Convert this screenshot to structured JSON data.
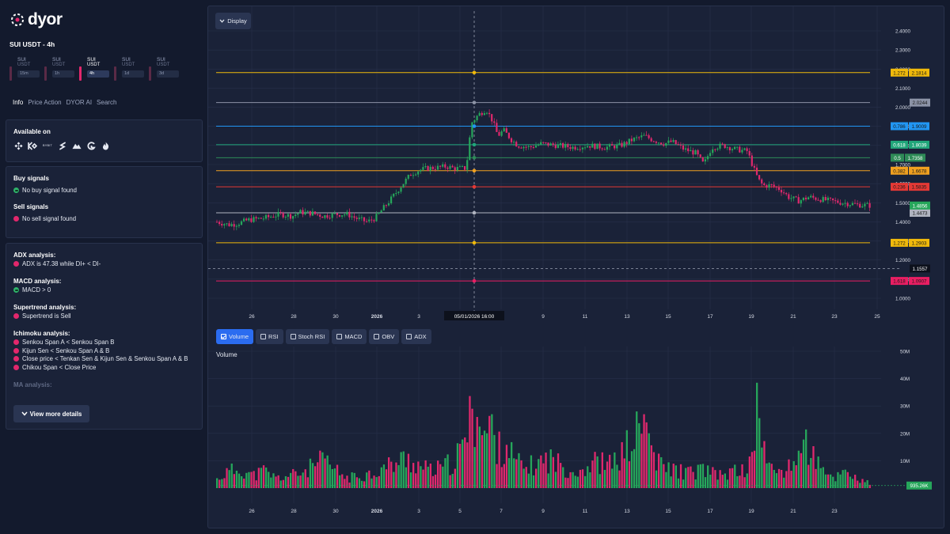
{
  "brand": {
    "name": "dyor"
  },
  "pair_title": "SUI USDT - 4h",
  "timeframes": [
    {
      "symbol": "SUI",
      "quote": "USDT",
      "label": "15m",
      "active": false
    },
    {
      "symbol": "SUI",
      "quote": "USDT",
      "label": "1h",
      "active": false
    },
    {
      "symbol": "SUI",
      "quote": "USDT",
      "label": "4h",
      "active": true
    },
    {
      "symbol": "SUI",
      "quote": "USDT",
      "label": "1d",
      "active": false
    },
    {
      "symbol": "SUI",
      "quote": "USDT",
      "label": "3d",
      "active": false
    }
  ],
  "tabs": [
    "Info",
    "Price Action",
    "DYOR AI",
    "Search"
  ],
  "available": {
    "title": "Available on",
    "exchanges": [
      "binance-icon",
      "kucoin-icon",
      "bybit-icon",
      "swap-icon",
      "mountain-icon",
      "gate-icon",
      "flame-icon"
    ],
    "bybit_text": "BYBIT"
  },
  "buy": {
    "title": "Buy signals",
    "text": "No buy signal found"
  },
  "sell": {
    "title": "Sell signals",
    "text": "No sell signal found"
  },
  "analysis": {
    "adx": {
      "title": "ADX analysis:",
      "text": "ADX is 47.38 while DI+ < DI-"
    },
    "macd": {
      "title": "MACD analysis:",
      "text": "MACD > 0"
    },
    "supertrend": {
      "title": "Supertrend analysis:",
      "text": "Supertrend is Sell"
    },
    "ichimoku": {
      "title": "Ichimoku analysis:",
      "lines": [
        "Senkou Span A < Senkou Span B",
        "Kijun Sen < Senkou Span A & B",
        "Close price < Tenkan Sen & Kijun Sen & Senkou Span A & B",
        "Chikou Span < Close Price"
      ]
    },
    "ma_title": "MA analysis:",
    "more_button": "View more details"
  },
  "display_button": "Display",
  "indicators": [
    {
      "label": "Volume",
      "checked": true
    },
    {
      "label": "RSI",
      "checked": false
    },
    {
      "label": "Stoch RSI",
      "checked": false
    },
    {
      "label": "MACD",
      "checked": false
    },
    {
      "label": "OBV",
      "checked": false
    },
    {
      "label": "ADX",
      "checked": false
    }
  ],
  "volume_title": "Volume",
  "colors": {
    "up": "#26a65b",
    "down": "#e0286d",
    "bg": "#1a2238",
    "grid": "#27304a"
  },
  "chart_data": {
    "price": {
      "type": "candlestick",
      "y_ticks": [
        "2.4000",
        "2.3000",
        "2.2000",
        "2.1000",
        "2.0000",
        "1.9000",
        "1.8000",
        "1.7000",
        "1.6000",
        "1.5000",
        "1.4000",
        "1.3000",
        "1.2000",
        "1.1000",
        "1.0000"
      ],
      "ylim": [
        0.94,
        2.46
      ],
      "x_ticks": [
        "26",
        "28",
        "30",
        "2026",
        "3",
        "5",
        "7",
        "9",
        "11",
        "13",
        "15",
        "17",
        "19",
        "21",
        "23",
        "25"
      ],
      "crosshair_label": "05/01/2026   16:00",
      "levels": [
        {
          "ratio": "1.272",
          "value": "2.1814",
          "price": 2.1814,
          "color": "#f0b90b"
        },
        {
          "ratio": "",
          "value": "2.0244",
          "price": 2.0244,
          "color": "#8c93a6"
        },
        {
          "ratio": "0.786",
          "value": "1.9009",
          "price": 1.9009,
          "color": "#2196f3"
        },
        {
          "ratio": "0.618",
          "value": "1.8039",
          "price": 1.8039,
          "color": "#21a67a"
        },
        {
          "ratio": "0.5",
          "value": "1.7358",
          "price": 1.7358,
          "color": "#2e8b57"
        },
        {
          "ratio": "0.382",
          "value": "1.6678",
          "price": 1.6678,
          "color": "#f0a020"
        },
        {
          "ratio": "0.236",
          "value": "1.5835",
          "price": 1.5835,
          "color": "#e53935"
        },
        {
          "ratio": "",
          "value": "1.4473",
          "price": 1.4473,
          "color": "#b0b4c0"
        },
        {
          "ratio": "1.272",
          "value": "1.2903",
          "price": 1.2903,
          "color": "#f0b90b"
        },
        {
          "ratio": "1.618",
          "value": "1.0907",
          "price": 1.0907,
          "color": "#e91e63"
        }
      ],
      "current_price": {
        "value": "1.4856",
        "price": 1.4856
      },
      "crosshair_price": {
        "value": "1.1557",
        "price": 1.1557
      },
      "path_points": [
        [
          0,
          1.4
        ],
        [
          15,
          1.385
        ],
        [
          25,
          1.39
        ],
        [
          40,
          1.41
        ],
        [
          60,
          1.42
        ],
        [
          80,
          1.44
        ],
        [
          95,
          1.43
        ],
        [
          105,
          1.45
        ],
        [
          120,
          1.445
        ],
        [
          135,
          1.43
        ],
        [
          150,
          1.44
        ],
        [
          165,
          1.44
        ],
        [
          175,
          1.42
        ],
        [
          190,
          1.4
        ],
        [
          200,
          1.42
        ],
        [
          210,
          1.47
        ],
        [
          220,
          1.52
        ],
        [
          235,
          1.6
        ],
        [
          245,
          1.65
        ],
        [
          255,
          1.67
        ],
        [
          265,
          1.68
        ],
        [
          280,
          1.685
        ],
        [
          290,
          1.69
        ],
        [
          300,
          1.68
        ],
        [
          315,
          1.68
        ],
        [
          318,
          1.8
        ],
        [
          322,
          1.92
        ],
        [
          330,
          1.96
        ],
        [
          340,
          1.99
        ],
        [
          348,
          1.93
        ],
        [
          355,
          1.85
        ],
        [
          362,
          1.88
        ],
        [
          372,
          1.83
        ],
        [
          380,
          1.8
        ],
        [
          395,
          1.79
        ],
        [
          410,
          1.81
        ],
        [
          430,
          1.8
        ],
        [
          450,
          1.79
        ],
        [
          470,
          1.8
        ],
        [
          490,
          1.79
        ],
        [
          510,
          1.8
        ],
        [
          525,
          1.83
        ],
        [
          540,
          1.85
        ],
        [
          550,
          1.83
        ],
        [
          565,
          1.81
        ],
        [
          575,
          1.82
        ],
        [
          590,
          1.78
        ],
        [
          605,
          1.76
        ],
        [
          615,
          1.7
        ],
        [
          625,
          1.79
        ],
        [
          640,
          1.8
        ],
        [
          655,
          1.78
        ],
        [
          670,
          1.77
        ],
        [
          678,
          1.68
        ],
        [
          684,
          1.62
        ],
        [
          690,
          1.59
        ],
        [
          700,
          1.59
        ],
        [
          712,
          1.57
        ],
        [
          722,
          1.53
        ],
        [
          735,
          1.51
        ],
        [
          748,
          1.53
        ],
        [
          760,
          1.52
        ],
        [
          775,
          1.51
        ],
        [
          790,
          1.5
        ],
        [
          810,
          1.49
        ],
        [
          827,
          1.485
        ]
      ]
    },
    "volume": {
      "type": "bar",
      "y_ticks": [
        "50M",
        "40M",
        "30M",
        "20M",
        "10M"
      ],
      "ylim": [
        0,
        50
      ],
      "x_ticks": [
        "26",
        "28",
        "30",
        "2026",
        "3",
        "5",
        "7",
        "9",
        "11",
        "13",
        "15",
        "17",
        "19",
        "21",
        "23"
      ],
      "current_volume": "935.26K",
      "bars": [
        {
          "x": 0,
          "v": 3.5
        },
        {
          "x": 10,
          "v": 6
        },
        {
          "x": 30,
          "v": 8
        },
        {
          "x": 45,
          "v": 5
        },
        {
          "x": 60,
          "v": 7
        },
        {
          "x": 75,
          "v": 4
        },
        {
          "x": 90,
          "v": 5
        },
        {
          "x": 105,
          "v": 6
        },
        {
          "x": 120,
          "v": 8.5
        },
        {
          "x": 135,
          "v": 11
        },
        {
          "x": 150,
          "v": 7
        },
        {
          "x": 165,
          "v": 4
        },
        {
          "x": 180,
          "v": 5
        },
        {
          "x": 195,
          "v": 6
        },
        {
          "x": 210,
          "v": 8
        },
        {
          "x": 225,
          "v": 10
        },
        {
          "x": 240,
          "v": 12
        },
        {
          "x": 255,
          "v": 9
        },
        {
          "x": 270,
          "v": 7
        },
        {
          "x": 285,
          "v": 8
        },
        {
          "x": 300,
          "v": 11
        },
        {
          "x": 310,
          "v": 16
        },
        {
          "x": 322,
          "v": 29
        },
        {
          "x": 330,
          "v": 26
        },
        {
          "x": 338,
          "v": 21
        },
        {
          "x": 346,
          "v": 27
        },
        {
          "x": 355,
          "v": 15
        },
        {
          "x": 365,
          "v": 19
        },
        {
          "x": 375,
          "v": 11
        },
        {
          "x": 390,
          "v": 8
        },
        {
          "x": 405,
          "v": 10
        },
        {
          "x": 420,
          "v": 12
        },
        {
          "x": 435,
          "v": 9
        },
        {
          "x": 450,
          "v": 7
        },
        {
          "x": 465,
          "v": 8
        },
        {
          "x": 480,
          "v": 11
        },
        {
          "x": 495,
          "v": 9
        },
        {
          "x": 510,
          "v": 13
        },
        {
          "x": 525,
          "v": 19
        },
        {
          "x": 540,
          "v": 27
        },
        {
          "x": 555,
          "v": 10
        },
        {
          "x": 570,
          "v": 8
        },
        {
          "x": 585,
          "v": 7
        },
        {
          "x": 600,
          "v": 6
        },
        {
          "x": 615,
          "v": 8
        },
        {
          "x": 630,
          "v": 5
        },
        {
          "x": 645,
          "v": 6
        },
        {
          "x": 660,
          "v": 7
        },
        {
          "x": 675,
          "v": 9
        },
        {
          "x": 682,
          "v": 38.5
        },
        {
          "x": 695,
          "v": 8
        },
        {
          "x": 710,
          "v": 7
        },
        {
          "x": 725,
          "v": 8
        },
        {
          "x": 740,
          "v": 19
        },
        {
          "x": 752,
          "v": 14
        },
        {
          "x": 765,
          "v": 6
        },
        {
          "x": 780,
          "v": 4
        },
        {
          "x": 795,
          "v": 8
        },
        {
          "x": 810,
          "v": 3
        },
        {
          "x": 825,
          "v": 2
        }
      ]
    }
  }
}
